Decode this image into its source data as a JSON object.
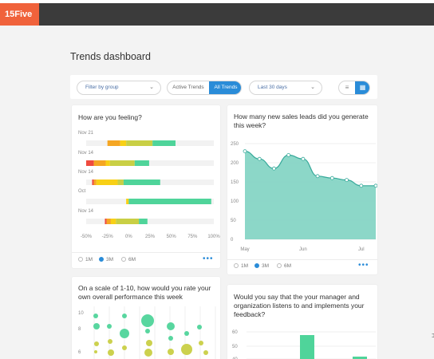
{
  "app": {
    "logo": "15Five"
  },
  "page": {
    "title": "Trends dashboard"
  },
  "toolbar": {
    "filter_label": "Filter by group",
    "segment": {
      "inactive": "Active Trends",
      "active": "All Trends"
    },
    "range_label": "Last 30 days",
    "list_icon": "≡",
    "grid_icon": "▦"
  },
  "card_feeling": {
    "title": "How are you feeling?",
    "row_labels": [
      "Nov 21",
      "Nov 14",
      "Nov 14",
      "Oct",
      "Nov 14"
    ],
    "x_ticks": [
      "-50%",
      "-25%",
      "0%",
      "25%",
      "50%",
      "75%",
      "100%"
    ],
    "radios": [
      "1M",
      "3M",
      "6M"
    ],
    "selected": "3M",
    "more": "•••"
  },
  "card_leads": {
    "title": "How many new sales leads did you generate this week?",
    "y_ticks": [
      "250",
      "200",
      "150",
      "100",
      "50",
      "0"
    ],
    "x_ticks": [
      "May",
      "Jun",
      "Jul"
    ],
    "radios": [
      "1M",
      "3M",
      "6M"
    ],
    "selected": "3M",
    "more": "•••"
  },
  "card_performance": {
    "title": "On a scale of 1-10, how would you rate your own overall performance this week",
    "y_ticks": [
      "10",
      "8",
      "6"
    ]
  },
  "card_manager": {
    "title": "Would you say that the your manager and organization listens to and implements your feedback?",
    "y_ticks": [
      "60",
      "50",
      "40"
    ]
  },
  "chart_data": [
    {
      "type": "bar",
      "title": "How are you feeling?",
      "categories": [
        "Nov 21",
        "Nov 14",
        "Nov 14",
        "Oct",
        "Nov 14"
      ],
      "xlim": [
        -50,
        100
      ],
      "series": [
        {
          "values": [
            0,
            -24,
            -18,
            0,
            -16
          ],
          "color": "#ef4b3f"
        },
        {
          "values": [
            -25,
            -10,
            -2,
            0,
            -7
          ],
          "color": "#f5a623"
        },
        {
          "values": [
            -8,
            -7,
            2,
            0,
            4
          ],
          "color": "#f8d016"
        },
        {
          "values": [
            40,
            43,
            2,
            0,
            26
          ],
          "color": "#c9cf45"
        },
        {
          "values": [
            80,
            60,
            78,
            100,
            75
          ],
          "color": "#4fd49a"
        }
      ]
    },
    {
      "type": "area",
      "title": "How many new sales leads did you generate this week?",
      "x": [
        "May",
        "",
        "",
        "",
        "Jun",
        "",
        "",
        "",
        "Jul",
        ""
      ],
      "values": [
        230,
        210,
        185,
        220,
        210,
        165,
        160,
        155,
        140,
        140
      ],
      "ylim": [
        0,
        250
      ],
      "color": "#7fd3c2",
      "line_color": "#36a99a"
    },
    {
      "type": "scatter",
      "title": "On a scale of 1-10, how would you rate your own overall performance this week",
      "ylim": [
        5,
        10
      ]
    },
    {
      "type": "bar",
      "title": "Would you say that the your manager and organization listens to and implements your feedback?",
      "ylim": [
        35,
        65
      ],
      "values": [
        58,
        42,
        55,
        40,
        52
      ]
    }
  ]
}
